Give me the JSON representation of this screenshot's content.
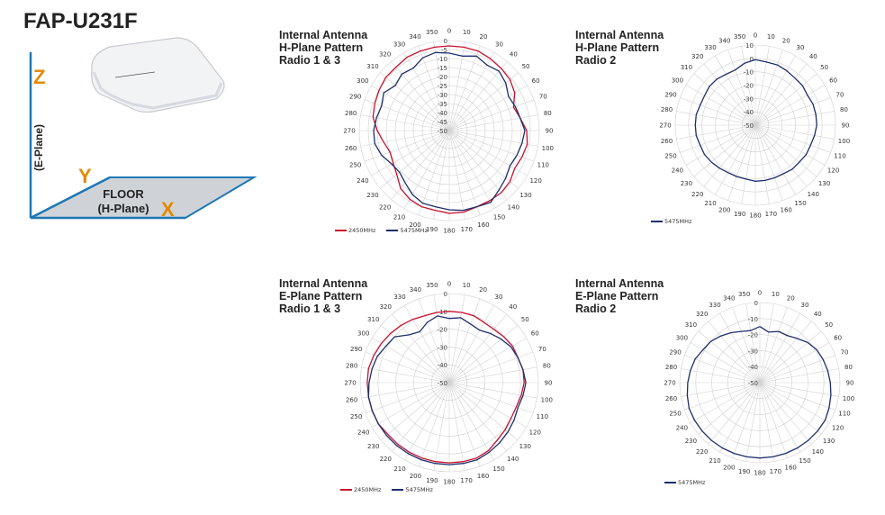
{
  "header": {
    "model": "FAP-U231F"
  },
  "orientation": {
    "z_label": "Z",
    "y_label": "Y",
    "x_label": "X",
    "e_plane_label": "(E-Plane)",
    "floor_label": "FLOOR",
    "h_plane_label": "(H-Plane)"
  },
  "colors": {
    "series_2450": "#c8102e",
    "series_5475": "#1c2e6b",
    "accent_orange": "#e38a00",
    "axis_blue": "#1f77b4"
  },
  "chart_data": [
    {
      "type": "polar-line",
      "title_lines": [
        "Internal Antenna",
        "H-Plane Pattern",
        "Radio 1 & 3"
      ],
      "angle_ticks": [
        0,
        10,
        20,
        30,
        40,
        50,
        60,
        70,
        80,
        90,
        100,
        110,
        120,
        130,
        140,
        150,
        160,
        170,
        180,
        190,
        200,
        210,
        220,
        230,
        240,
        250,
        260,
        270,
        280,
        290,
        300,
        310,
        320,
        330,
        340,
        350
      ],
      "radial_ticks": [
        "0",
        "-5",
        "-10",
        "-15",
        "-20",
        "-25",
        "-30",
        "-35",
        "-40",
        "-45",
        "-50"
      ],
      "rlim": [
        -50,
        0
      ],
      "series": [
        {
          "name": "2450MHz",
          "color": "#c8102e",
          "values": [
            -3,
            -3,
            -3,
            -4,
            -5,
            -6,
            -8,
            -12,
            -10,
            -7,
            -6,
            -7,
            -8,
            -6,
            -5,
            -5,
            -5,
            -4,
            -4,
            -5,
            -5,
            -6,
            -8,
            -12,
            -14,
            -15,
            -13,
            -10,
            -7,
            -6,
            -5,
            -4,
            -4,
            -3,
            -3,
            -3
          ]
        },
        {
          "name": "5475MHz",
          "color": "#1c2e6b",
          "values": [
            -7,
            -8,
            -6,
            -8,
            -7,
            -9,
            -12,
            -11,
            -10,
            -8,
            -9,
            -10,
            -11,
            -9,
            -7,
            -4,
            -5,
            -5,
            -6,
            -7,
            -7,
            -9,
            -12,
            -14,
            -13,
            -10,
            -8,
            -8,
            -9,
            -10,
            -8,
            -11,
            -9,
            -10,
            -7,
            -6
          ]
        }
      ]
    },
    {
      "type": "polar-line",
      "title_lines": [
        "Internal Antenna",
        "H-Plane Pattern",
        "Radio 2"
      ],
      "angle_ticks": [
        0,
        10,
        20,
        30,
        40,
        50,
        60,
        70,
        80,
        90,
        100,
        110,
        120,
        130,
        140,
        150,
        160,
        170,
        180,
        190,
        200,
        210,
        220,
        230,
        240,
        250,
        260,
        270,
        280,
        290,
        300,
        310,
        320,
        330,
        340,
        350
      ],
      "radial_ticks": [
        "10",
        "0",
        "-10",
        "-20",
        "-30",
        "-40",
        "-50"
      ],
      "rlim": [
        -50,
        10
      ],
      "series": [
        {
          "name": "5475MHz",
          "color": "#1c2e6b",
          "values": [
            -1,
            -2,
            -2,
            -3,
            -4,
            -4,
            -5,
            -4,
            -4,
            -4,
            -5,
            -6,
            -6,
            -7,
            -7,
            -8,
            -8,
            -8,
            -8,
            -9,
            -9,
            -9,
            -8,
            -7,
            -6,
            -6,
            -5,
            -5,
            -5,
            -6,
            -6,
            -5,
            -5,
            -6,
            -6,
            -3
          ]
        }
      ]
    },
    {
      "type": "polar-line",
      "title_lines": [
        "Internal Antenna",
        "E-Plane Pattern",
        "Radio 1 & 3"
      ],
      "angle_ticks": [
        0,
        10,
        20,
        30,
        40,
        50,
        60,
        70,
        80,
        90,
        100,
        110,
        120,
        130,
        140,
        150,
        160,
        170,
        180,
        190,
        200,
        210,
        220,
        230,
        240,
        250,
        260,
        270,
        280,
        290,
        300,
        310,
        320,
        330,
        340,
        350
      ],
      "radial_ticks": [
        "0",
        "-10",
        "-20",
        "-30",
        "-40",
        "-50"
      ],
      "rlim": [
        -50,
        0
      ],
      "series": [
        {
          "name": "2450MHz",
          "color": "#c8102e",
          "values": [
            -10,
            -10,
            -10,
            -11,
            -11,
            -10,
            -9,
            -9,
            -8,
            -8,
            -9,
            -10,
            -10,
            -9,
            -8,
            -6,
            -5,
            -5,
            -5,
            -5,
            -5,
            -5,
            -5,
            -5,
            -4,
            -4,
            -4,
            -4,
            -4,
            -5,
            -6,
            -7,
            -8,
            -9,
            -10,
            -10
          ]
        },
        {
          "name": "5475MHz",
          "color": "#1c2e6b",
          "values": [
            -14,
            -13,
            -15,
            -16,
            -14,
            -12,
            -10,
            -9,
            -8,
            -7,
            -8,
            -9,
            -8,
            -7,
            -6,
            -5,
            -4,
            -4,
            -4,
            -4,
            -4,
            -4,
            -4,
            -4,
            -4,
            -4,
            -4,
            -5,
            -6,
            -7,
            -9,
            -10,
            -15,
            -17,
            -14,
            -12
          ]
        }
      ]
    },
    {
      "type": "polar-line",
      "title_lines": [
        "Internal Antenna",
        "E-Plane Pattern",
        "Radio 2"
      ],
      "angle_ticks": [
        0,
        10,
        20,
        30,
        40,
        50,
        60,
        70,
        80,
        90,
        100,
        110,
        120,
        130,
        140,
        150,
        160,
        170,
        180,
        190,
        200,
        210,
        220,
        230,
        240,
        250,
        260,
        270,
        280,
        290,
        300,
        310,
        320,
        330,
        340,
        350
      ],
      "radial_ticks": [
        "0",
        "-10",
        "-20",
        "-30",
        "-40",
        "-50"
      ],
      "rlim": [
        -50,
        0
      ],
      "series": [
        {
          "name": "5475MHz",
          "color": "#1c2e6b",
          "values": [
            -15,
            -18,
            -16,
            -16,
            -14,
            -11,
            -9,
            -8,
            -7,
            -6,
            -5,
            -4,
            -3,
            -3,
            -3,
            -3,
            -3,
            -3,
            -3,
            -3,
            -3,
            -3,
            -3,
            -3,
            -3,
            -3,
            -4,
            -5,
            -6,
            -7,
            -9,
            -10,
            -12,
            -14,
            -16,
            -17
          ]
        }
      ]
    }
  ]
}
